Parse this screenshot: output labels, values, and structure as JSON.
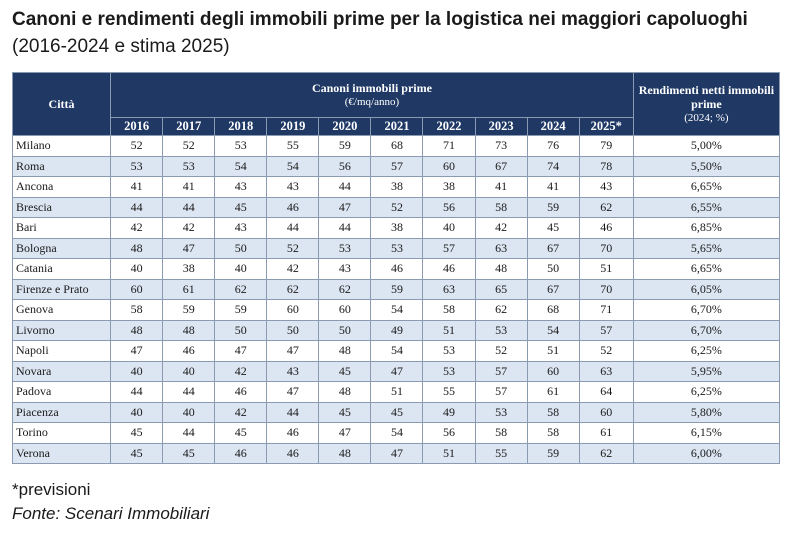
{
  "title": {
    "bold": "Canoni e rendimenti degli immobili prime per la logistica nei maggiori capoluoghi",
    "normal": "(2016-2024 e stima 2025)"
  },
  "chart_data": {
    "type": "table",
    "headers": {
      "city": "Città",
      "rents_group": "Canoni immobili prime",
      "rents_unit": "(€/mq/anno)",
      "yield_group": "Rendimenti netti immobili prime",
      "yield_unit": "(2024; %)"
    },
    "years": [
      "2016",
      "2017",
      "2018",
      "2019",
      "2020",
      "2021",
      "2022",
      "2023",
      "2024",
      "2025*"
    ],
    "rows": [
      {
        "city": "Milano",
        "values": [
          "52",
          "52",
          "53",
          "55",
          "59",
          "68",
          "71",
          "73",
          "76",
          "79"
        ],
        "yield": "5,00%"
      },
      {
        "city": "Roma",
        "values": [
          "53",
          "53",
          "54",
          "54",
          "56",
          "57",
          "60",
          "67",
          "74",
          "78"
        ],
        "yield": "5,50%"
      },
      {
        "city": "Ancona",
        "values": [
          "41",
          "41",
          "43",
          "43",
          "44",
          "38",
          "38",
          "41",
          "41",
          "43"
        ],
        "yield": "6,65%"
      },
      {
        "city": "Brescia",
        "values": [
          "44",
          "44",
          "45",
          "46",
          "47",
          "52",
          "56",
          "58",
          "59",
          "62"
        ],
        "yield": "6,55%"
      },
      {
        "city": "Bari",
        "values": [
          "42",
          "42",
          "43",
          "44",
          "44",
          "38",
          "40",
          "42",
          "45",
          "46"
        ],
        "yield": "6,85%"
      },
      {
        "city": "Bologna",
        "values": [
          "48",
          "47",
          "50",
          "52",
          "53",
          "53",
          "57",
          "63",
          "67",
          "70"
        ],
        "yield": "5,65%"
      },
      {
        "city": "Catania",
        "values": [
          "40",
          "38",
          "40",
          "42",
          "43",
          "46",
          "46",
          "48",
          "50",
          "51"
        ],
        "yield": "6,65%"
      },
      {
        "city": "Firenze e Prato",
        "values": [
          "60",
          "61",
          "62",
          "62",
          "62",
          "59",
          "63",
          "65",
          "67",
          "70"
        ],
        "yield": "6,05%"
      },
      {
        "city": "Genova",
        "values": [
          "58",
          "59",
          "59",
          "60",
          "60",
          "54",
          "58",
          "62",
          "68",
          "71"
        ],
        "yield": "6,70%"
      },
      {
        "city": "Livorno",
        "values": [
          "48",
          "48",
          "50",
          "50",
          "50",
          "49",
          "51",
          "53",
          "54",
          "57"
        ],
        "yield": "6,70%"
      },
      {
        "city": "Napoli",
        "values": [
          "47",
          "46",
          "47",
          "47",
          "48",
          "54",
          "53",
          "52",
          "51",
          "52"
        ],
        "yield": "6,25%"
      },
      {
        "city": "Novara",
        "values": [
          "40",
          "40",
          "42",
          "43",
          "45",
          "47",
          "53",
          "57",
          "60",
          "63"
        ],
        "yield": "5,95%"
      },
      {
        "city": "Padova",
        "values": [
          "44",
          "44",
          "46",
          "47",
          "48",
          "51",
          "55",
          "57",
          "61",
          "64"
        ],
        "yield": "6,25%"
      },
      {
        "city": "Piacenza",
        "values": [
          "40",
          "40",
          "42",
          "44",
          "45",
          "45",
          "49",
          "53",
          "58",
          "60"
        ],
        "yield": "5,80%"
      },
      {
        "city": "Torino",
        "values": [
          "45",
          "44",
          "45",
          "46",
          "47",
          "54",
          "56",
          "58",
          "58",
          "61"
        ],
        "yield": "6,15%"
      },
      {
        "city": "Verona",
        "values": [
          "45",
          "45",
          "46",
          "46",
          "48",
          "47",
          "51",
          "55",
          "59",
          "62"
        ],
        "yield": "6,00%"
      }
    ]
  },
  "notes": {
    "footnote": "*previsioni",
    "source": "Fonte: Scenari Immobiliari"
  }
}
